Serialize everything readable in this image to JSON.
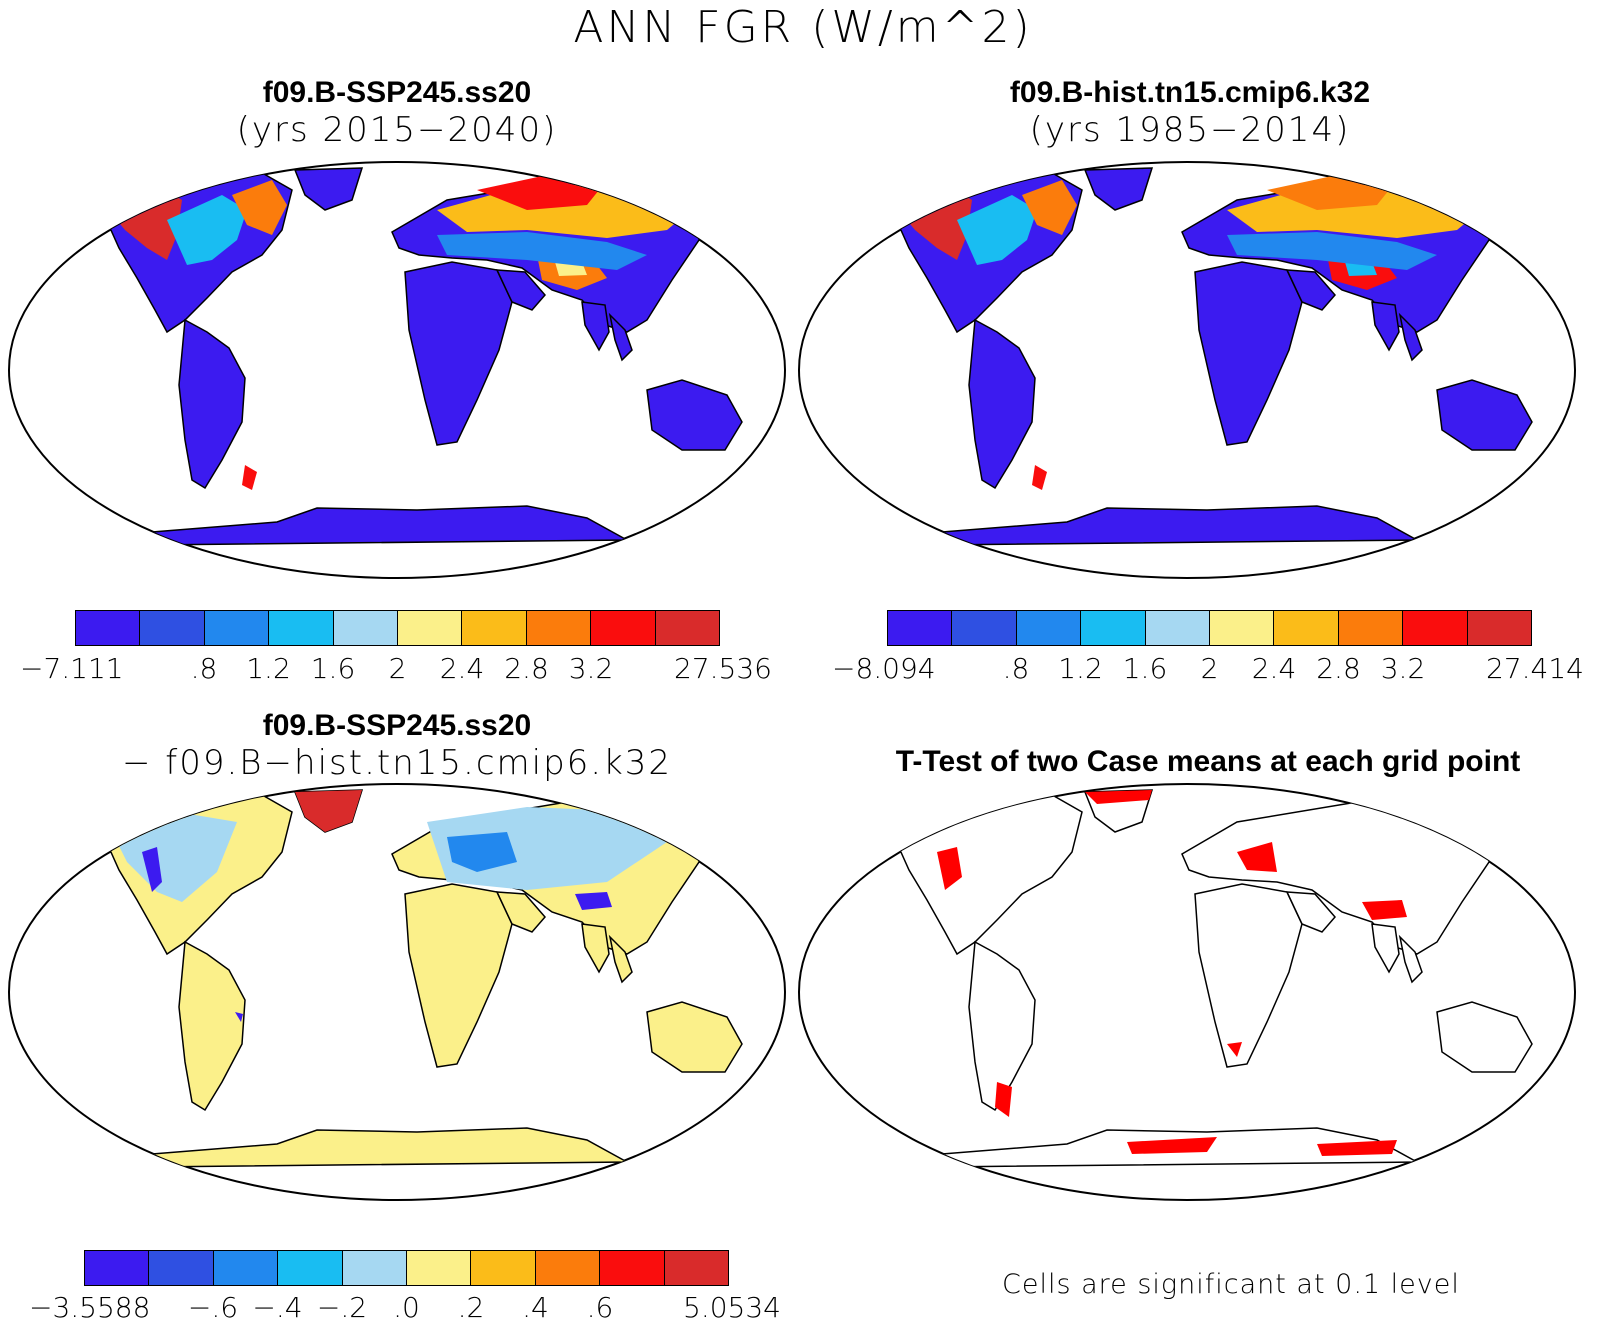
{
  "figure": {
    "title": "ANN FGR (W/m^2)"
  },
  "panels": [
    {
      "id": "case1",
      "name": "f09.B-SSP245.ss20",
      "subtitle": "(yrs 2015−2040)"
    },
    {
      "id": "case2",
      "name": "f09.B-hist.tn15.cmip6.k32",
      "subtitle": "(yrs 1985−2014)"
    },
    {
      "id": "diff",
      "name": "f09.B-SSP245.ss20",
      "subtitle": "− f09.B−hist.tn15.cmip6.k32"
    },
    {
      "id": "ttest",
      "name": "T-Test of two Case means at each grid point",
      "footnote": "Cells are significant at 0.1 level"
    }
  ],
  "colorbars": {
    "case1": {
      "colors": [
        "#3c1bf0",
        "#2f50e2",
        "#2288ee",
        "#19bdf2",
        "#a6d8f2",
        "#fbf08a",
        "#fbbc19",
        "#fb7c0c",
        "#fa0d0d",
        "#d92b2b"
      ],
      "labels": [
        "−7.111",
        ".8",
        "1.2",
        "1.6",
        "2",
        "2.4",
        "2.8",
        "3.2",
        "27.536"
      ]
    },
    "case2": {
      "colors": [
        "#3c1bf0",
        "#2f50e2",
        "#2288ee",
        "#19bdf2",
        "#a6d8f2",
        "#fbf08a",
        "#fbbc19",
        "#fb7c0c",
        "#fa0d0d",
        "#d92b2b"
      ],
      "labels": [
        "−8.094",
        ".8",
        "1.2",
        "1.6",
        "2",
        "2.4",
        "2.8",
        "3.2",
        "27.414"
      ]
    },
    "diff": {
      "colors": [
        "#3c1bf0",
        "#2f50e2",
        "#2288ee",
        "#19bdf2",
        "#a6d8f2",
        "#fbf08a",
        "#fbbc19",
        "#fb7c0c",
        "#fa0d0d",
        "#d92b2b"
      ],
      "labels": [
        "−3.5588",
        "−.6",
        "−.4",
        "−.2",
        ".0",
        ".2",
        ".4",
        ".6",
        "5.0534"
      ]
    }
  },
  "map_colors": {
    "ocean": "#ffffff",
    "coast": "#000000",
    "significant": "#ff0000"
  }
}
